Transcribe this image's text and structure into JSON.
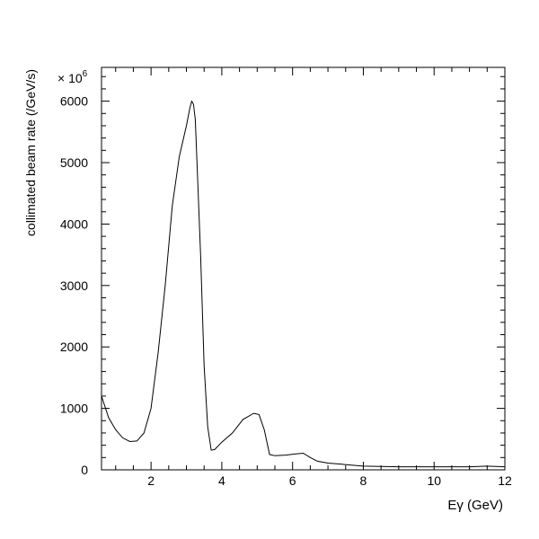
{
  "chart_data": {
    "type": "line",
    "title": "",
    "xlabel": "Eγ (GeV)",
    "ylabel": "collimated beam rate (/GeV/s)",
    "y_multiplier": "× 10",
    "y_multiplier_exp": "6",
    "xlim": [
      0.6,
      12
    ],
    "ylim": [
      0,
      6550
    ],
    "x_ticks": [
      2,
      4,
      6,
      8,
      10,
      12
    ],
    "y_ticks": [
      0,
      1000,
      2000,
      3000,
      4000,
      5000,
      6000
    ],
    "grid": false,
    "series": [
      {
        "name": "",
        "x": [
          0.6,
          0.8,
          1.0,
          1.2,
          1.4,
          1.6,
          1.8,
          2.0,
          2.2,
          2.4,
          2.6,
          2.8,
          3.0,
          3.1,
          3.15,
          3.2,
          3.25,
          3.3,
          3.4,
          3.5,
          3.6,
          3.7,
          3.8,
          4.0,
          4.3,
          4.6,
          4.9,
          5.05,
          5.2,
          5.35,
          5.5,
          5.8,
          6.1,
          6.3,
          6.5,
          6.7,
          7.0,
          7.4,
          8.0,
          9.0,
          10.0,
          11.0,
          11.5,
          12.0
        ],
        "y": [
          1200,
          850,
          650,
          520,
          460,
          470,
          600,
          1000,
          1900,
          3000,
          4300,
          5100,
          5600,
          5900,
          6000,
          5950,
          5700,
          5000,
          3500,
          1700,
          700,
          320,
          330,
          450,
          600,
          820,
          920,
          900,
          650,
          250,
          230,
          240,
          260,
          270,
          200,
          140,
          110,
          90,
          60,
          50,
          50,
          50,
          60,
          50
        ]
      }
    ]
  }
}
